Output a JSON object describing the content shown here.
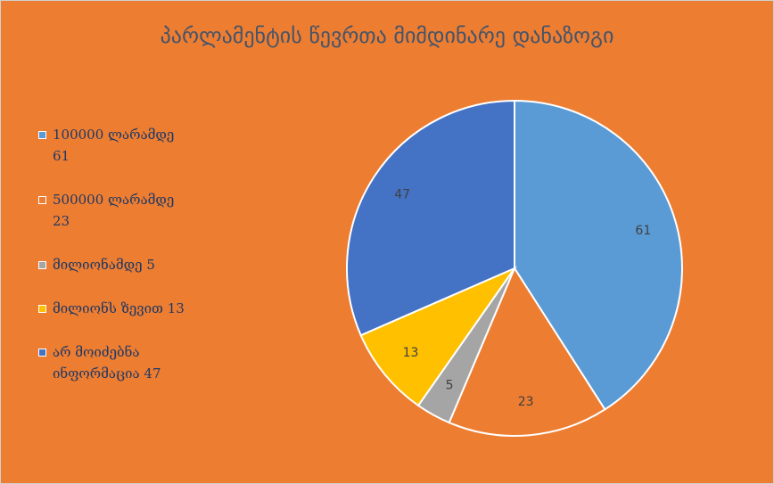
{
  "chart_data": {
    "type": "pie",
    "title": "პარლამენტის წევრთა მიმდინარე დანაზოგი",
    "categories": [
      "100000 ლარამდე 61",
      "500000 ლარამდე 23",
      "მილიონამდე 5",
      "მილიონს ზევით 13",
      "არ მოიძებნა ინფორმაცია 47"
    ],
    "values": [
      61,
      23,
      5,
      13,
      47
    ],
    "colors": [
      "#5b9bd5",
      "#ed7d31",
      "#a5a5a5",
      "#ffc000",
      "#4472c4"
    ],
    "legend": "left"
  }
}
